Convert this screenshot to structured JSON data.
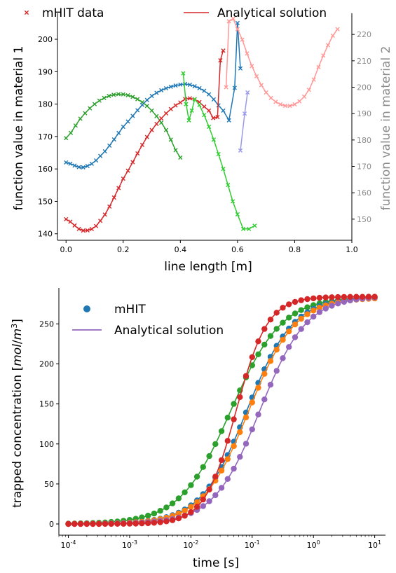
{
  "chart_data": [
    {
      "type": "line",
      "xlabel": "line length [m]",
      "ylabel": "function value in material 1",
      "ylabel_right": "function value in material 2",
      "xlim": [
        -0.03,
        1.0
      ],
      "ylim": [
        138,
        208
      ],
      "ylim_right": [
        142,
        228
      ],
      "xticks": [
        "0.0",
        "0.2",
        "0.4",
        "0.6",
        "0.8",
        "1.0"
      ],
      "yticks": [
        "140",
        "150",
        "160",
        "170",
        "180",
        "190",
        "200"
      ],
      "yticks_right": [
        "150",
        "160",
        "170",
        "180",
        "190",
        "200",
        "210",
        "220"
      ],
      "legend": {
        "placement": "top",
        "entries": [
          "mHIT data",
          "Analytical solution"
        ]
      },
      "grid": false,
      "series": [
        {
          "axis": "left",
          "color": "#2ca02c",
          "style": "solid+x",
          "x": [
            0.0,
            0.05,
            0.1,
            0.15,
            0.2,
            0.25,
            0.3,
            0.35,
            0.4
          ],
          "y": [
            169.5,
            175.5,
            180,
            182.5,
            183,
            181.5,
            178,
            172,
            163.5
          ]
        },
        {
          "axis": "left",
          "color": "#1f77b4",
          "style": "solid+x",
          "x": [
            0.0,
            0.06,
            0.12,
            0.2,
            0.3,
            0.4,
            0.45,
            0.5,
            0.55,
            0.57,
            0.59,
            0.6,
            0.61
          ],
          "y": [
            162,
            160.5,
            164,
            173,
            182.5,
            186,
            185.5,
            183,
            178,
            175,
            185,
            205,
            191
          ]
        },
        {
          "axis": "left",
          "color": "#d62728",
          "style": "solid+x",
          "x": [
            0.0,
            0.06,
            0.12,
            0.2,
            0.3,
            0.4,
            0.45,
            0.5,
            0.53,
            0.54,
            0.55
          ],
          "y": [
            144.5,
            141,
            144,
            157,
            172,
            180.5,
            181.5,
            178,
            176,
            193.5,
            196.5
          ]
        },
        {
          "axis": "left",
          "color": "#32cd32",
          "style": "solid+x",
          "x": [
            0.41,
            0.42,
            0.43,
            0.44,
            0.45,
            0.5,
            0.55,
            0.6,
            0.62,
            0.64,
            0.66
          ],
          "y": [
            189.5,
            180,
            175,
            178,
            181.5,
            173,
            160,
            146,
            141.5,
            141.5,
            142.5
          ]
        },
        {
          "axis": "right",
          "color": "#ff9896",
          "style": "solid+x",
          "x": [
            0.56,
            0.57,
            0.6,
            0.65,
            0.7,
            0.75,
            0.8,
            0.85,
            0.9,
            0.95
          ],
          "y": [
            200,
            225,
            222,
            208,
            198,
            193.5,
            193.5,
            199,
            212,
            222
          ]
        },
        {
          "axis": "right",
          "color": "#9a9ae8",
          "style": "solid+x",
          "x": [
            0.61,
            0.625,
            0.635
          ],
          "y": [
            176,
            190,
            198
          ]
        }
      ]
    },
    {
      "type": "line",
      "xlabel": "time [s]",
      "ylabel": "trapped concentration [mol/m3]",
      "xscale": "log",
      "xlim": [
        7e-05,
        15
      ],
      "ylim": [
        -14,
        295
      ],
      "xticks": [
        "10-4",
        "10-3",
        "10-2",
        "10-1",
        "100",
        "101"
      ],
      "yticks": [
        "0",
        "50",
        "100",
        "150",
        "200",
        "250"
      ],
      "legend": {
        "placement": "top-left",
        "entries": [
          "mHIT",
          "Analytical solution"
        ]
      },
      "grid": false,
      "series": [
        {
          "color": "#2ca02c",
          "t50": 0.045,
          "n": 1.05,
          "max": 284
        },
        {
          "color": "#1f77b4",
          "t50": 0.082,
          "n": 1.15,
          "max": 284
        },
        {
          "color": "#ff7f0e",
          "t50": 0.088,
          "n": 1.15,
          "max": 283
        },
        {
          "color": "#9467bd",
          "t50": 0.135,
          "n": 1.15,
          "max": 285
        },
        {
          "color": "#d62728",
          "t50": 0.055,
          "n": 1.7,
          "max": 284
        }
      ]
    }
  ]
}
